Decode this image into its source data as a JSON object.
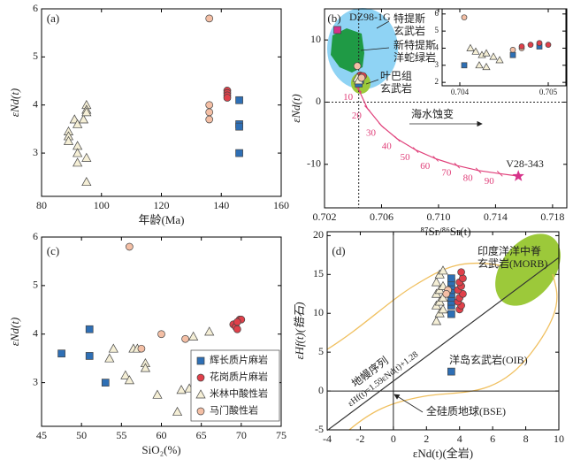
{
  "chart_data": [
    {
      "type": "scatter",
      "panel_label": "(a)",
      "x_label": "年龄(Ma)",
      "y_label": "εNd(t)",
      "xlim": [
        80,
        160
      ],
      "ylim": [
        2.1,
        6
      ],
      "xticks": [
        80,
        100,
        120,
        140,
        160
      ],
      "yticks": [
        3,
        4,
        5,
        6
      ],
      "series": [
        {
          "marker": "square",
          "color": "#2e6fb5",
          "x": [
            146,
            146,
            146,
            146
          ],
          "values": [
            4.1,
            3.6,
            3.55,
            3.0
          ]
        },
        {
          "marker": "circle",
          "color": "#e0404a",
          "x": [
            142,
            142,
            142,
            142
          ],
          "values": [
            4.3,
            4.25,
            4.2,
            4.15
          ]
        },
        {
          "marker": "triangle",
          "color": "#f5efd6",
          "x": [
            89,
            89,
            89,
            91,
            92,
            92,
            92,
            92,
            94,
            95,
            95,
            95,
            95,
            95
          ],
          "values": [
            3.45,
            3.35,
            3.25,
            3.7,
            3.6,
            3.15,
            3.0,
            2.8,
            3.7,
            4.0,
            3.9,
            3.85,
            2.9,
            2.4
          ]
        },
        {
          "marker": "circle",
          "color": "#f4bfa5",
          "x": [
            136,
            136,
            136,
            136
          ],
          "values": [
            5.8,
            4.0,
            3.85,
            3.7
          ]
        }
      ]
    },
    {
      "type": "scatter",
      "panel_label": "(b)",
      "x_label": "⁸⁷Sr/⁸⁶Sr(t)",
      "y_label": "εNd(t)",
      "xlim": [
        0.702,
        0.719
      ],
      "ylim": [
        -17,
        15
      ],
      "xticks": [
        0.702,
        0.706,
        {
          "value": 0.71,
          "label": "0.710"
        },
        0.714,
        0.718
      ],
      "yticks": [
        -10,
        0,
        10
      ],
      "ref_lines": {
        "style": "dotted",
        "h": [
          0
        ],
        "v": [
          0.7044
        ]
      },
      "series": [
        {
          "type": "line",
          "color": "#e0407a",
          "x": [
            0.7043,
            0.7044,
            0.705,
            0.706,
            0.7071,
            0.7084,
            0.7098,
            0.7113,
            0.7128,
            0.7143,
            0.7156
          ],
          "values": [
            4.2,
            2.0,
            -1.0,
            -3.8,
            -5.9,
            -7.7,
            -9.1,
            -10.2,
            -11.0,
            -11.5,
            -11.9
          ]
        },
        {
          "marker": "circle",
          "color": "#e0404a",
          "x": [
            0.7045,
            0.7046,
            0.7047
          ],
          "values": [
            4.3,
            4.1,
            4.2
          ]
        },
        {
          "marker": "square",
          "color": "#2e6fb5",
          "x": [
            0.7044,
            0.7045
          ],
          "values": [
            3.0,
            3.6
          ]
        },
        {
          "marker": "triangle",
          "color": "#f5efd6",
          "x": [
            0.7043,
            0.7044
          ],
          "values": [
            3.9,
            3.5
          ]
        },
        {
          "marker": "circle",
          "color": "#f4bfa5",
          "x": [
            0.7043,
            0.7046
          ],
          "values": [
            5.8,
            3.9
          ]
        },
        {
          "marker": "square",
          "color": "#d6338a",
          "x": [
            0.7029
          ],
          "values": [
            11.6
          ]
        },
        {
          "marker": "star",
          "color": "#d6338a",
          "label": "V28-343",
          "x": [
            0.7156
          ],
          "values": [
            -11.9
          ]
        }
      ],
      "mixing_labels": [
        10,
        20,
        30,
        40,
        50,
        60,
        70,
        80,
        90
      ],
      "annotations": [
        "DZ98-1G",
        "特提斯",
        "玄武岩",
        "新特提斯",
        "洋蛇绿岩",
        "叶巴组",
        "玄武岩",
        "海水蚀变"
      ]
    },
    {
      "type": "scatter",
      "xlim": [
        0.7038,
        0.7052
      ],
      "ylim": [
        1.8,
        6.3
      ],
      "xticks": [
        0.704,
        0.705
      ],
      "yticks": [
        2,
        3,
        4,
        5,
        6
      ],
      "series": [
        {
          "marker": "circle",
          "color": "#f4bfa5",
          "x": [
            0.70405,
            0.7046,
            0.7047
          ],
          "values": [
            5.8,
            3.9,
            4.0
          ]
        },
        {
          "marker": "triangle",
          "color": "#f5efd6",
          "x": [
            0.70412,
            0.70418,
            0.70425,
            0.7043,
            0.70438,
            0.70445,
            0.70422,
            0.7043
          ],
          "values": [
            4.0,
            3.8,
            3.6,
            3.7,
            3.5,
            3.3,
            3.0,
            2.9
          ]
        },
        {
          "marker": "square",
          "color": "#2e6fb5",
          "x": [
            0.70405,
            0.7046,
            0.7049
          ],
          "values": [
            3.0,
            3.6,
            4.1
          ]
        },
        {
          "marker": "circle",
          "color": "#e0404a",
          "x": [
            0.7047,
            0.7048,
            0.7049,
            0.705
          ],
          "values": [
            4.1,
            4.2,
            4.3,
            4.2
          ]
        }
      ]
    },
    {
      "type": "scatter",
      "panel_label": "(c)",
      "x_label": "SiO₂(%)",
      "y_label": "εNd(t)",
      "xlim": [
        45,
        75
      ],
      "ylim": [
        2.1,
        6
      ],
      "xticks": [
        45,
        50,
        55,
        60,
        65,
        70,
        75
      ],
      "yticks": [
        3,
        4,
        5,
        6
      ],
      "legend": "lower right",
      "series": [
        {
          "name": "辉长质片麻岩",
          "marker": "square",
          "color": "#2e6fb5",
          "x": [
            47.5,
            51,
            51,
            53
          ],
          "values": [
            3.6,
            4.1,
            3.55,
            3.0
          ]
        },
        {
          "name": "花岗质片麻岩",
          "marker": "circle",
          "color": "#e0404a",
          "x": [
            69,
            69.3,
            69.5,
            69.8,
            70,
            69.5
          ],
          "values": [
            4.2,
            4.15,
            4.1,
            4.3,
            4.3,
            4.25
          ]
        },
        {
          "name": "米林中酸性岩",
          "marker": "triangle",
          "color": "#f5efd6",
          "x": [
            54,
            53.5,
            55.5,
            56,
            56.5,
            57,
            58,
            58,
            59.5,
            62.5,
            63.5,
            62,
            64,
            66
          ],
          "values": [
            3.7,
            3.5,
            3.15,
            3.05,
            3.7,
            3.7,
            3.4,
            3.3,
            2.75,
            2.85,
            2.88,
            2.4,
            3.95,
            4.05
          ]
        },
        {
          "name": "马门酸性岩",
          "marker": "circle",
          "color": "#f4bfa5",
          "x": [
            56,
            60,
            57.5,
            63
          ],
          "values": [
            5.8,
            4.0,
            3.7,
            3.9
          ]
        }
      ]
    },
    {
      "type": "scatter",
      "panel_label": "(d)",
      "x_label": "εNd(t)(全岩)",
      "y_label": "εHf(t)(锆石)",
      "xlim": [
        -4,
        10
      ],
      "ylim": [
        -5,
        20.5
      ],
      "xticks": [
        -4,
        -2,
        0,
        2,
        4,
        6,
        8,
        10
      ],
      "yticks": [
        -5,
        0,
        5,
        10,
        15,
        20
      ],
      "ref_lines": {
        "style": "solid",
        "h": [
          0
        ],
        "v": [
          0
        ]
      },
      "series": [
        {
          "type": "line",
          "color": "#333333",
          "x": [
            -4,
            10
          ],
          "values": [
            -5.08,
            17.18
          ]
        },
        {
          "marker": "triangle",
          "color": "#f5efd6",
          "x": [
            2.6,
            2.8,
            3.0,
            2.6,
            2.8,
            3.0,
            2.6,
            2.8,
            3.0,
            2.6,
            2.8,
            3.0
          ],
          "values": [
            9,
            10,
            10.5,
            11,
            11.5,
            12,
            12.5,
            13,
            13.5,
            14,
            15,
            15.5
          ]
        },
        {
          "marker": "square",
          "color": "#2e6fb5",
          "x": [
            3.5,
            3.5,
            3.5,
            3.5,
            3.5,
            3.5,
            3.5,
            3.5,
            3.5,
            3.5
          ],
          "values": [
            9.9,
            11,
            11.5,
            12,
            12.5,
            13,
            13.5,
            14,
            14.5,
            2.5
          ]
        },
        {
          "marker": "circle",
          "color": "#e0404a",
          "x": [
            4,
            4.1,
            3.9,
            4,
            4.2,
            3.9,
            4.1,
            4,
            4.2,
            4.1
          ],
          "values": [
            10.5,
            11,
            11.5,
            12,
            12.5,
            13,
            13.5,
            14,
            14.5,
            15.3
          ]
        },
        {
          "marker": "circle",
          "color": "#f4bfa5",
          "x": [
            3.3,
            3.2
          ],
          "values": [
            13,
            12.5
          ]
        }
      ],
      "annotations": [
        "印度洋洋中脊",
        "玄武岩(MORB)",
        "洋岛玄武岩(OIB)",
        "地幔序列",
        "εHf(t)=1.59εNd(t)+1.28",
        "全硅质地球(BSE)"
      ]
    }
  ]
}
